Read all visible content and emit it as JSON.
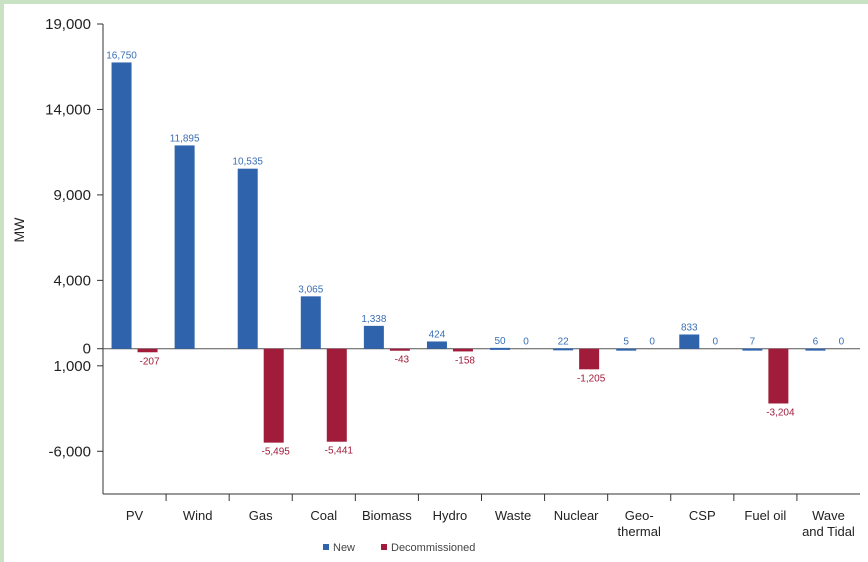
{
  "chart_data": {
    "type": "bar",
    "ylabel": "MW",
    "categories": [
      "PV",
      "Wind",
      "Gas",
      "Coal",
      "Biomass",
      "Hydro",
      "Waste",
      "Nuclear",
      "Geo-thermal",
      "CSP",
      "Fuel oil",
      "Wave and Tidal"
    ],
    "category_display": [
      [
        "PV"
      ],
      [
        "Wind"
      ],
      [
        "Gas"
      ],
      [
        "Coal"
      ],
      [
        "Biomass"
      ],
      [
        "Hydro"
      ],
      [
        "Waste"
      ],
      [
        "Nuclear"
      ],
      [
        "Geo-",
        "thermal"
      ],
      [
        "CSP"
      ],
      [
        "Fuel oil"
      ],
      [
        "Wave",
        "and Tidal"
      ]
    ],
    "series": [
      {
        "name": "New",
        "color": "#2f64ad",
        "values": [
          16750,
          11895,
          10535,
          3065,
          1338,
          424,
          50,
          22,
          5,
          833,
          7,
          6
        ],
        "labels": [
          "16,750",
          "11,895",
          "10,535",
          "3,065",
          "1,338",
          "424",
          "50",
          "22",
          "5",
          "833",
          "7",
          "6"
        ]
      },
      {
        "name": "Decommissioned",
        "color": "#a11c3a",
        "values": [
          -207,
          0,
          -5495,
          -5441,
          -43,
          -158,
          0,
          -1205,
          0,
          0,
          -3204,
          0
        ],
        "labels": [
          "-207",
          "",
          "-5,495",
          "-5,441",
          "-43",
          "-158",
          "0",
          "-1,205",
          "0",
          "0",
          "-3,204",
          "0"
        ]
      }
    ],
    "yticks": [
      {
        "value": 19000,
        "label": "19,000"
      },
      {
        "value": 14000,
        "label": "14,000"
      },
      {
        "value": 9000,
        "label": "9,000"
      },
      {
        "value": 4000,
        "label": "4,000"
      },
      {
        "value": 0,
        "label": "0"
      },
      {
        "value": -1000,
        "label": "1,000"
      },
      {
        "value": -6000,
        "label": "-6,000"
      }
    ],
    "ylim": [
      -8500,
      19000
    ],
    "grid": false,
    "legend": "bottom"
  }
}
